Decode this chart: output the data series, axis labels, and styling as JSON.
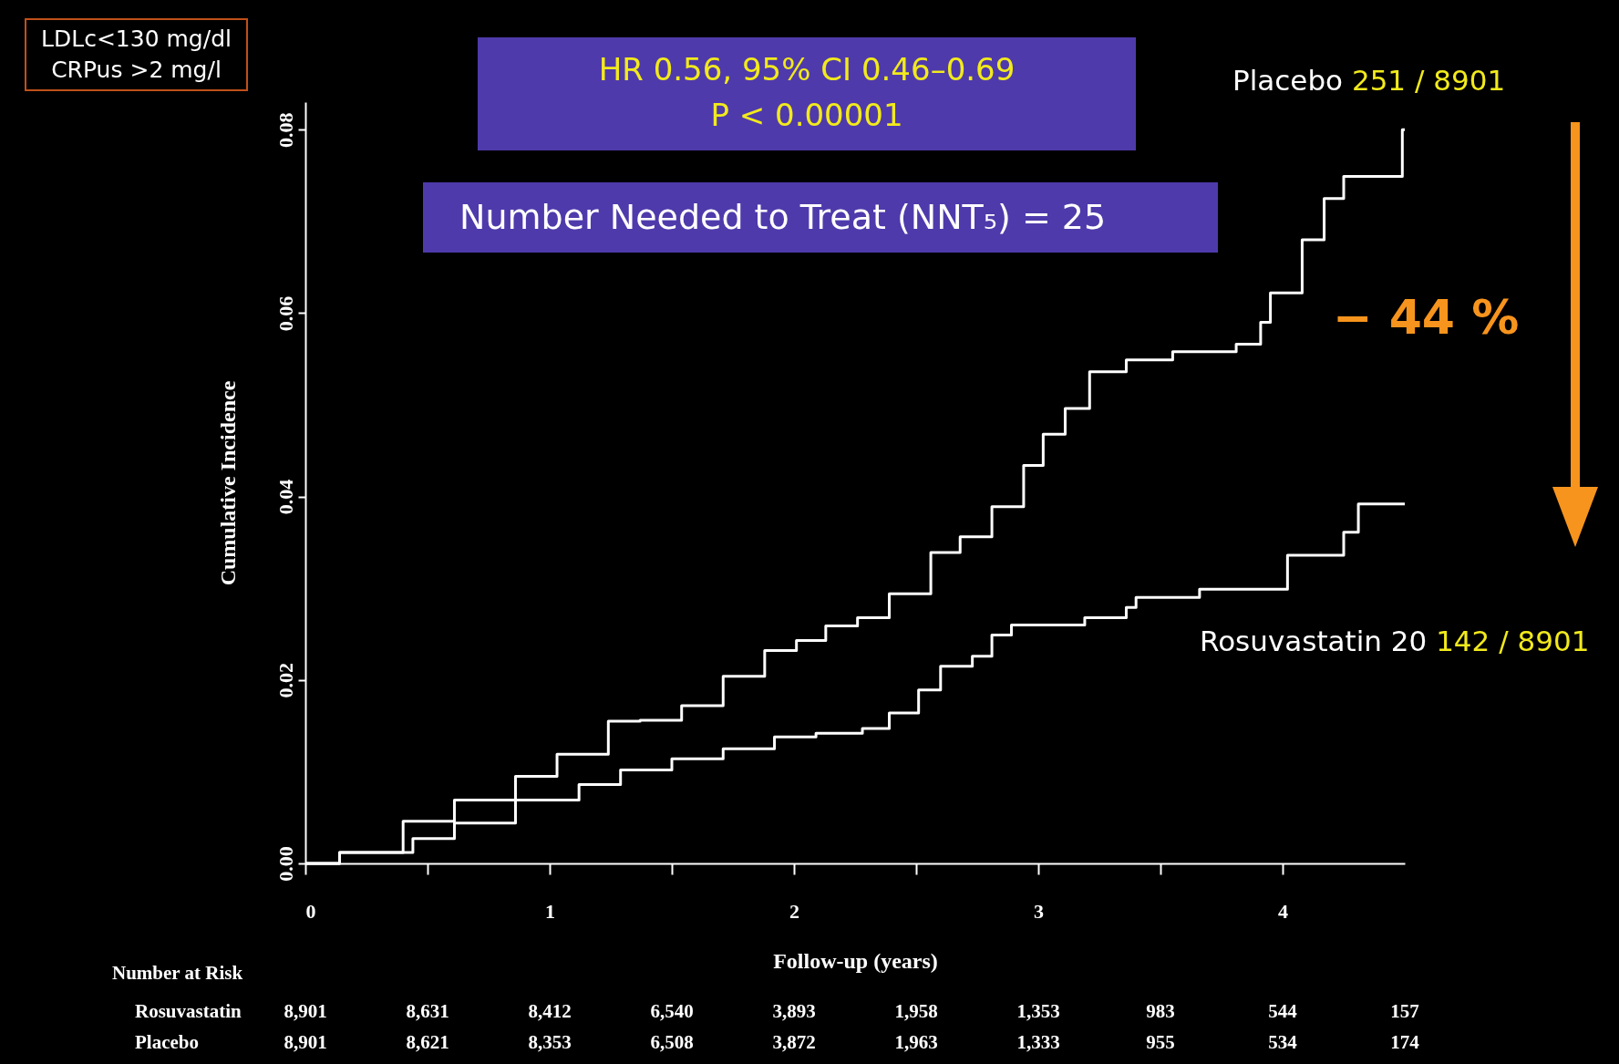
{
  "chart_data": {
    "type": "step",
    "xlabel": "Follow-up (years)",
    "ylabel": "Cumulative Incidence",
    "xlim": [
      0,
      4.5
    ],
    "ylim": [
      0,
      0.083
    ],
    "xticks": [
      0,
      {
        "value": 0.5,
        "label": null
      },
      1,
      {
        "value": 1.5,
        "label": null
      },
      2,
      {
        "value": 2.5,
        "label": null
      },
      3,
      {
        "value": 3.5,
        "label": null
      },
      4
    ],
    "yticks": [
      {
        "value": 0,
        "label": "0.00"
      },
      {
        "value": 0.02,
        "label": "0.02"
      },
      {
        "value": 0.04,
        "label": "0.04"
      },
      {
        "value": 0.06,
        "label": "0.06"
      },
      {
        "value": 0.08,
        "label": "0.08"
      }
    ],
    "grid": false,
    "series": [
      {
        "name": "Placebo",
        "color": "#ffffff",
        "x": [
          0,
          0.14,
          0.4,
          0.61,
          0.86,
          1.03,
          1.24,
          1.37,
          1.54,
          1.71,
          1.88,
          2.01,
          2.13,
          2.26,
          2.39,
          2.56,
          2.68,
          2.81,
          2.94,
          3.02,
          3.11,
          3.21,
          3.36,
          3.55,
          3.81,
          3.91,
          3.95,
          4.08,
          4.17,
          4.25,
          4.49,
          4.5
        ],
        "values": [
          0,
          0.0012,
          0.0046,
          0.0069,
          0.0095,
          0.0119,
          0.0155,
          0.0156,
          0.0172,
          0.0204,
          0.0232,
          0.0243,
          0.0259,
          0.0268,
          0.0294,
          0.0339,
          0.0356,
          0.0389,
          0.0434,
          0.0468,
          0.0496,
          0.0536,
          0.0549,
          0.0558,
          0.0566,
          0.059,
          0.0622,
          0.068,
          0.0725,
          0.0749,
          0.08,
          0.08
        ]
      },
      {
        "name": "Rosuvastatin 20",
        "color": "#ffffff",
        "x": [
          0,
          0.14,
          0.44,
          0.61,
          0.86,
          1.12,
          1.29,
          1.5,
          1.71,
          1.92,
          2.09,
          2.28,
          2.39,
          2.51,
          2.6,
          2.73,
          2.81,
          2.89,
          3.19,
          3.36,
          3.4,
          3.66,
          4.02,
          4.25,
          4.31,
          4.5
        ],
        "values": [
          0,
          0.0012,
          0.0027,
          0.0044,
          0.0069,
          0.0086,
          0.0102,
          0.0114,
          0.0125,
          0.0138,
          0.0142,
          0.0147,
          0.0164,
          0.0189,
          0.0215,
          0.0226,
          0.0249,
          0.026,
          0.0268,
          0.0279,
          0.029,
          0.0299,
          0.0336,
          0.0361,
          0.0392,
          0.0392
        ]
      }
    ],
    "annotations": [
      "LDLc<130 mg/dl",
      "CRPus >2 mg/l",
      "HR 0.56, 95% CI 0.46–0.69",
      "P < 0.00001",
      "Number Needed to Treat (NNT₅) = 25",
      "251 / 8901",
      "142 / 8901",
      "− 44 %",
      "Number at Risk",
      "Rosuvastatin",
      "8,901",
      "8,631",
      "8,412",
      "6,540",
      "3,893",
      "1,958",
      "1,353",
      "983",
      "544",
      "157",
      "Placebo",
      "8,901",
      "8,621",
      "8,353",
      "6,508",
      "3,872",
      "1,963",
      "1,333",
      "955",
      "534",
      "174"
    ]
  }
}
